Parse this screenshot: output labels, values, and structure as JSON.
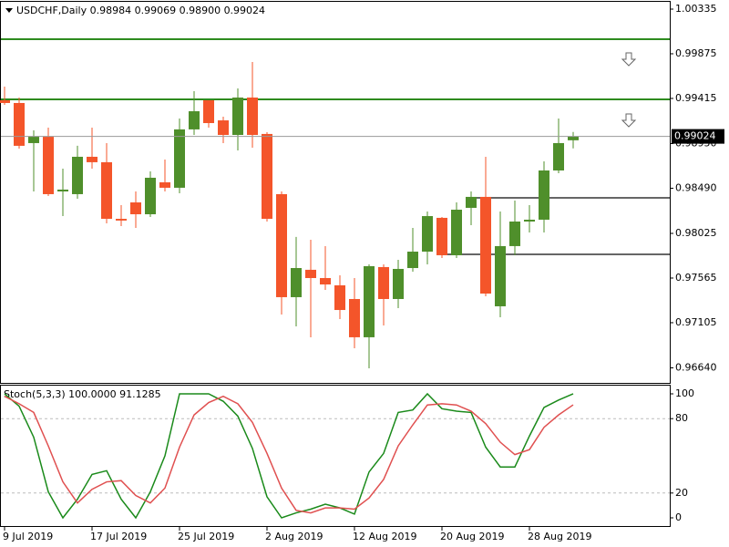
{
  "chart_data": [
    {
      "type": "candlestick",
      "title": "USDCHF,Daily  0.98984 0.99069 0.98900 0.99024",
      "categories": [
        "9 Jul 2019",
        null,
        null,
        null,
        null,
        null,
        "17 Jul 2019",
        null,
        null,
        null,
        null,
        null,
        "25 Jul 2019",
        null,
        null,
        null,
        null,
        null,
        "2 Aug 2019",
        null,
        null,
        null,
        null,
        null,
        "12 Aug 2019",
        null,
        null,
        null,
        null,
        null,
        "20 Aug 2019",
        null,
        null,
        null,
        null,
        null,
        "28 Aug 2019",
        null,
        null,
        null
      ],
      "open": [
        0.99396,
        0.99368,
        0.98955,
        0.9902,
        0.98457,
        0.98429,
        0.98814,
        0.98758,
        0.98175,
        0.98344,
        0.98222,
        0.98551,
        0.98495,
        0.99096,
        0.99396,
        0.99189,
        0.99039,
        0.99424,
        0.99049,
        0.98429,
        0.97368,
        0.9765,
        0.97565,
        0.9749,
        0.97349,
        0.96955,
        0.97678,
        0.97349,
        0.97668,
        0.97837,
        0.98185,
        0.978,
        0.98288,
        0.98401,
        0.97274,
        0.97894,
        0.98147,
        0.98166,
        0.98673,
        0.98984
      ],
      "high": [
        0.99537,
        0.99424,
        0.99086,
        0.99114,
        0.98692,
        0.98927,
        0.99114,
        0.98955,
        0.98316,
        0.98457,
        0.98664,
        0.98786,
        0.99208,
        0.9949,
        0.99396,
        0.99227,
        0.99518,
        0.9979,
        0.99067,
        0.98457,
        0.97988,
        0.97959,
        0.97894,
        0.97593,
        0.97565,
        0.97706,
        0.97706,
        0.97753,
        0.98081,
        0.9825,
        0.98194,
        0.98344,
        0.98457,
        0.98814,
        0.9825,
        0.98363,
        0.98316,
        0.98767,
        0.99208,
        0.99069
      ],
      "low": [
        0.99349,
        0.98898,
        0.98457,
        0.9841,
        0.98203,
        0.98382,
        0.98692,
        0.98128,
        0.981,
        0.98081,
        0.98194,
        0.98457,
        0.98438,
        0.99039,
        0.99114,
        0.98955,
        0.9888,
        0.98908,
        0.98147,
        0.97189,
        0.97067,
        0.96955,
        0.97443,
        0.97142,
        0.96842,
        0.96635,
        0.97077,
        0.97255,
        0.97631,
        0.97706,
        0.97772,
        0.97772,
        0.9811,
        0.97377,
        0.97161,
        0.978,
        0.98034,
        0.98034,
        0.98645,
        0.989
      ],
      "close": [
        0.99368,
        0.98927,
        0.9902,
        0.98429,
        0.98476,
        0.98814,
        0.98758,
        0.98175,
        0.98157,
        0.98222,
        0.98598,
        0.98495,
        0.99096,
        0.99283,
        0.99161,
        0.99039,
        0.99424,
        0.99039,
        0.98175,
        0.97368,
        0.97668,
        0.97565,
        0.97499,
        0.97236,
        0.96955,
        0.97687,
        0.97349,
        0.97659,
        0.97837,
        0.98203,
        0.978,
        0.98269,
        0.98401,
        0.97405,
        0.97894,
        0.98147,
        0.98166,
        0.98673,
        0.98955,
        0.99024
      ],
      "up_color": "#4f8f2b",
      "down_color": "#f4552a",
      "ylim": [
        0.96485,
        1.0041
      ],
      "yticks": [
        {
          "value": 1.00335,
          "label": "1.00335"
        },
        {
          "value": 0.99875,
          "label": "0.99875"
        },
        {
          "value": 0.99415,
          "label": "0.99415"
        },
        {
          "value": 0.9895,
          "label": "0.98950"
        },
        {
          "value": 0.9849,
          "label": "0.98490"
        },
        {
          "value": 0.98025,
          "label": "0.98025"
        },
        {
          "value": 0.97565,
          "label": "0.97565"
        },
        {
          "value": 0.97105,
          "label": "0.97105"
        },
        {
          "value": 0.9664,
          "label": "0.96640"
        }
      ],
      "levels": [
        {
          "value": 1.00025,
          "color": "#2e8b1f"
        },
        {
          "value": 0.99405,
          "color": "#2e8b1f"
        },
        {
          "value": 0.98391,
          "color": "#666666"
        },
        {
          "value": 0.97809,
          "color": "#666666"
        }
      ]
    },
    {
      "type": "line",
      "title": "Stoch(5,3,3) 100.0000 91.1285",
      "ylim": [
        -7.35,
        107.35
      ],
      "yticks": [
        0,
        20,
        80,
        100
      ],
      "levels": [
        20,
        80
      ],
      "series": [
        {
          "color": "#1a8a1a",
          "values": [
            100,
            90,
            65,
            21,
            0,
            15,
            35,
            38,
            15,
            0,
            21,
            50,
            100,
            100,
            100,
            94,
            82,
            56,
            17,
            0,
            4,
            7,
            11,
            8,
            3,
            37,
            52,
            85,
            87,
            100,
            88,
            86,
            85,
            57,
            41,
            41,
            66,
            89,
            95,
            100
          ]
        },
        {
          "color": "#e05050",
          "values": [
            98,
            92,
            85,
            58,
            29,
            12,
            23,
            29,
            30,
            18,
            12,
            24,
            57,
            83,
            93,
            98,
            92,
            77,
            52,
            24,
            6,
            4,
            8,
            8,
            7,
            16,
            31,
            58,
            75,
            91,
            92,
            91,
            86,
            76,
            61,
            51,
            55,
            73,
            83,
            91.1285
          ]
        }
      ]
    }
  ]
}
